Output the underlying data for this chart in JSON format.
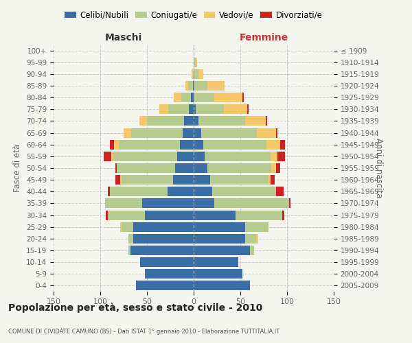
{
  "age_groups": [
    "0-4",
    "5-9",
    "10-14",
    "15-19",
    "20-24",
    "25-29",
    "30-34",
    "35-39",
    "40-44",
    "45-49",
    "50-54",
    "55-59",
    "60-64",
    "65-69",
    "70-74",
    "75-79",
    "80-84",
    "85-89",
    "90-94",
    "95-99",
    "100+"
  ],
  "birth_years": [
    "2005-2009",
    "2000-2004",
    "1995-1999",
    "1990-1994",
    "1985-1989",
    "1980-1984",
    "1975-1979",
    "1970-1974",
    "1965-1969",
    "1960-1964",
    "1955-1959",
    "1950-1954",
    "1945-1949",
    "1940-1944",
    "1935-1939",
    "1930-1934",
    "1925-1929",
    "1920-1924",
    "1915-1919",
    "1910-1914",
    "≤ 1909"
  ],
  "maschi": {
    "celibi": [
      62,
      52,
      57,
      68,
      65,
      65,
      52,
      55,
      28,
      22,
      20,
      18,
      15,
      12,
      10,
      5,
      3,
      1,
      0,
      0,
      0
    ],
    "coniugati": [
      0,
      0,
      0,
      2,
      5,
      12,
      40,
      40,
      62,
      55,
      62,
      68,
      65,
      55,
      40,
      22,
      10,
      5,
      1,
      0,
      0
    ],
    "vedovi": [
      0,
      0,
      0,
      0,
      0,
      2,
      0,
      0,
      0,
      2,
      0,
      2,
      5,
      8,
      8,
      10,
      8,
      3,
      1,
      0,
      0
    ],
    "divorziati": [
      0,
      0,
      0,
      0,
      0,
      0,
      2,
      0,
      2,
      5,
      2,
      8,
      5,
      0,
      0,
      0,
      0,
      0,
      0,
      0,
      0
    ]
  },
  "femmine": {
    "nubili": [
      60,
      52,
      48,
      60,
      55,
      55,
      45,
      22,
      20,
      18,
      15,
      12,
      10,
      8,
      5,
      2,
      0,
      0,
      0,
      0,
      0
    ],
    "coniugate": [
      0,
      0,
      0,
      5,
      12,
      25,
      50,
      80,
      68,
      62,
      68,
      70,
      68,
      60,
      50,
      30,
      22,
      15,
      5,
      2,
      0
    ],
    "vedove": [
      0,
      0,
      0,
      0,
      2,
      0,
      0,
      0,
      0,
      2,
      5,
      8,
      15,
      20,
      22,
      25,
      30,
      18,
      5,
      2,
      0
    ],
    "divorziate": [
      0,
      0,
      0,
      0,
      0,
      0,
      2,
      2,
      8,
      5,
      5,
      8,
      5,
      2,
      2,
      2,
      2,
      0,
      0,
      0,
      0
    ]
  },
  "colors": {
    "celibi": "#3a6ea5",
    "coniugati": "#b5cc8e",
    "vedovi": "#f5c96a",
    "divorziati": "#cc2222"
  },
  "xlim": 150,
  "title": "Popolazione per età, sesso e stato civile - 2010",
  "subtitle": "COMUNE DI CIVIDATE CAMUNO (BS) - Dati ISTAT 1° gennaio 2010 - Elaborazione TUTTITALIA.IT",
  "ylabel_left": "Fasce di età",
  "ylabel_right": "Anni di nascita",
  "xlabel_left": "Maschi",
  "xlabel_right": "Femmine",
  "bg_color": "#f5f5f0",
  "grid_color": "#cccccc"
}
